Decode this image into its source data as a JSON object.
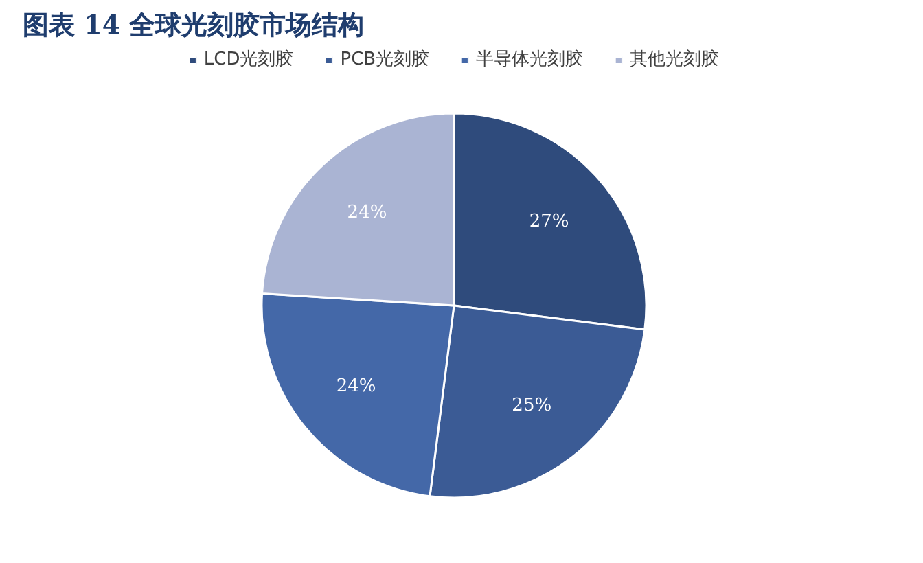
{
  "chart_data": {
    "type": "pie",
    "title": "图表 14 全球光刻胶市场结构",
    "categories": [
      "LCD光刻胶",
      "PCB光刻胶",
      "半导体光刻胶",
      "其他光刻胶"
    ],
    "values": [
      27,
      25,
      24,
      24
    ],
    "colors": [
      "#2f4b7c",
      "#3b5b95",
      "#4468a8",
      "#aab4d3"
    ],
    "value_labels": [
      "27%",
      "25%",
      "24%",
      "24%"
    ],
    "legend": "top"
  }
}
